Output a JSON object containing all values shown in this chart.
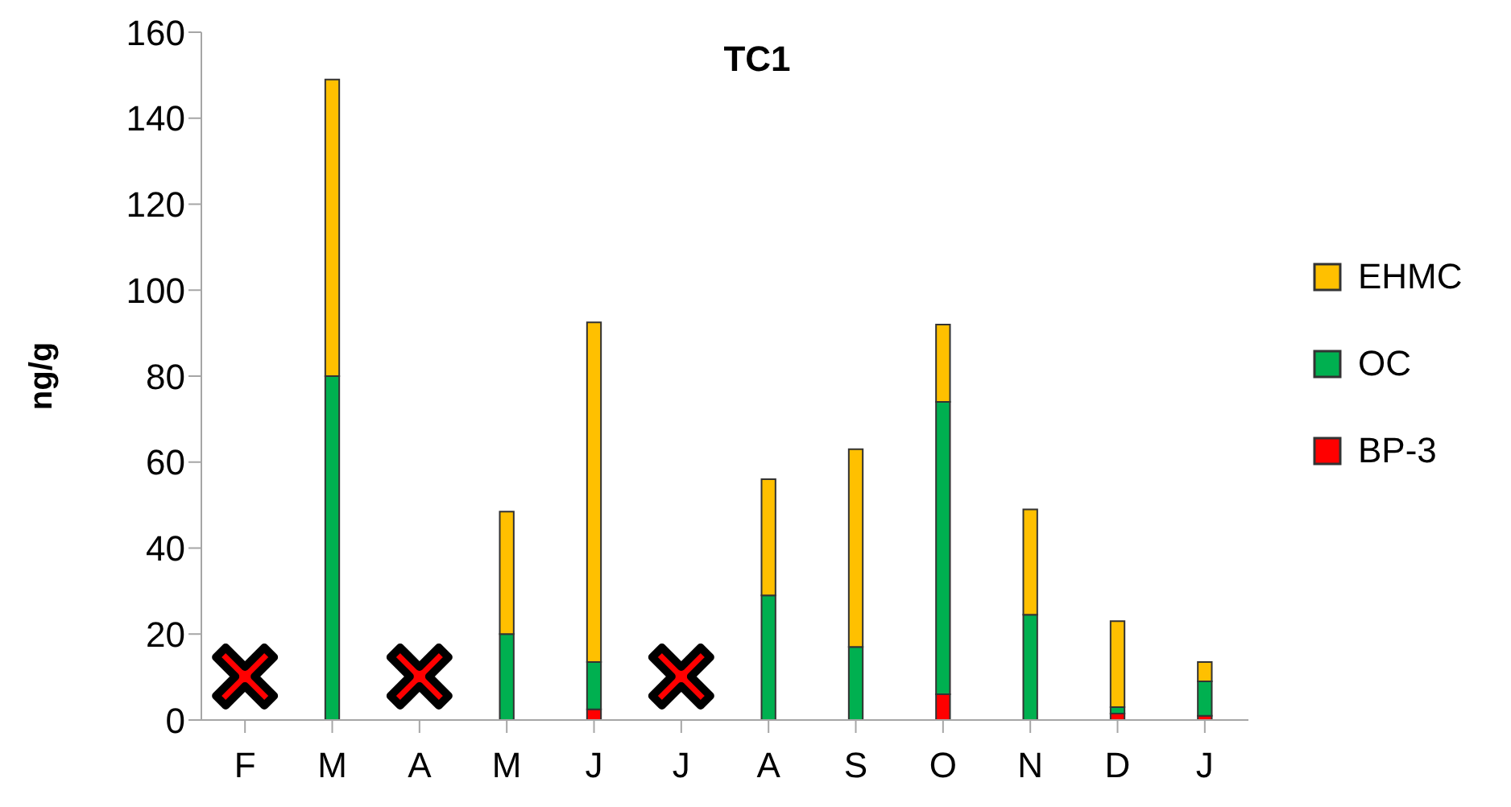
{
  "chart_data": {
    "type": "bar",
    "title": "TC1",
    "ylabel": "ng/g",
    "stacked": true,
    "legend": "right",
    "grid": false,
    "categories": [
      "F",
      "M",
      "A",
      "M",
      "J",
      "J",
      "A",
      "S",
      "O",
      "N",
      "D",
      "J"
    ],
    "series": [
      {
        "name": "BP-3",
        "color": "#ff0000",
        "values": [
          null,
          0,
          null,
          0,
          2.5,
          null,
          0,
          0,
          6,
          0,
          1.5,
          1
        ]
      },
      {
        "name": "OC",
        "color": "#00b050",
        "values": [
          null,
          80,
          null,
          20,
          11,
          null,
          29,
          17,
          68,
          24.5,
          1.5,
          8
        ]
      },
      {
        "name": "EHMC",
        "color": "#ffc000",
        "values": [
          null,
          69,
          null,
          28.5,
          79,
          null,
          27,
          46,
          18,
          24.5,
          20,
          4.5
        ]
      }
    ],
    "ylim": [
      0,
      160
    ],
    "yticks": [
      0,
      20,
      40,
      60,
      80,
      100,
      120,
      140,
      160
    ]
  }
}
